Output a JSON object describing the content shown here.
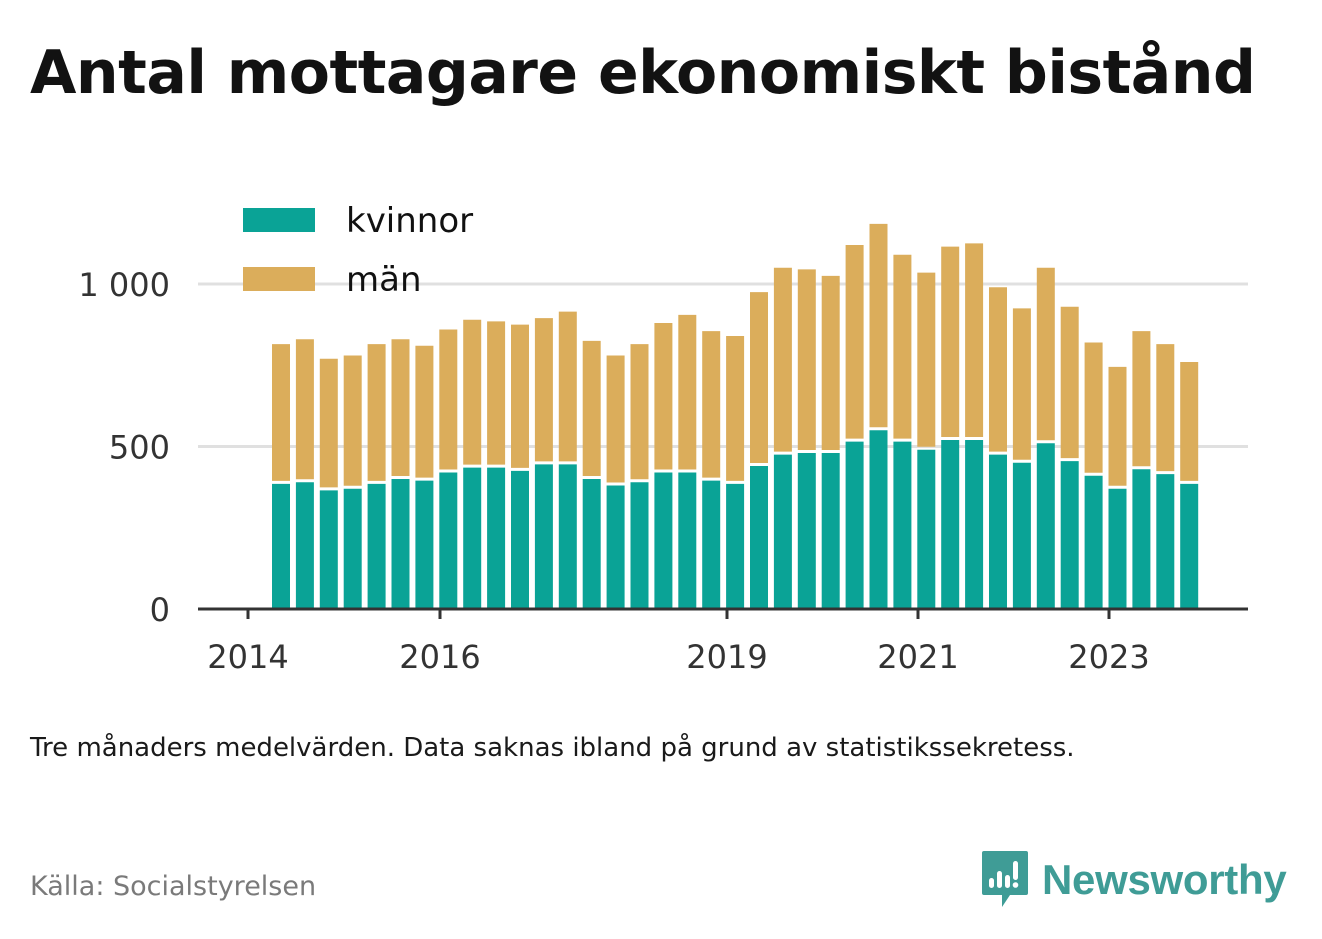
{
  "title": "Antal mottagare ekonomiskt bistånd",
  "note": "Tre månaders medelvärden. Data saknas ibland på grund av statistikssekretess.",
  "source": "Källa: Socialstyrelsen",
  "brand": {
    "name": "Newsworthy",
    "icon": "newsworthy-logo-icon",
    "color": "#3f9c96"
  },
  "colors": {
    "kvinnor": "#0aa396",
    "man": "#dbad5b",
    "grid": "#e0e0e0",
    "axis": "#333333"
  },
  "chart_data": {
    "type": "bar",
    "stacked": true,
    "legend_position": "top-left",
    "grid": true,
    "ylim": [
      0,
      1250
    ],
    "yticks": [
      0,
      500,
      1000
    ],
    "ytick_labels": [
      "0",
      "500",
      "1 000"
    ],
    "xtick_labels": [
      "2014",
      "2016",
      "2019",
      "2021",
      "2023"
    ],
    "xtick_positions": [
      0,
      8,
      20,
      28,
      36
    ],
    "categories": [
      "2014 Q3",
      "2014 Q4",
      "2015 Q1",
      "2015 Q2",
      "2015 Q3",
      "2015 Q4",
      "2016 Q1",
      "2016 Q2",
      "2016 Q3",
      "2016 Q4",
      "2017 Q1",
      "2017 Q2",
      "2017 Q3",
      "2017 Q4",
      "2018 Q1",
      "2018 Q2",
      "2018 Q3",
      "2018 Q4",
      "2019 Q1",
      "2019 Q2",
      "2019 Q3",
      "2019 Q4",
      "2020 Q1",
      "2020 Q2",
      "2020 Q3",
      "2020 Q4",
      "2021 Q1",
      "2021 Q2",
      "2021 Q3",
      "2021 Q4",
      "2022 Q1",
      "2022 Q2",
      "2022 Q3",
      "2022 Q4",
      "2023 Q1",
      "2023 Q2",
      "2023 Q3",
      "2023 Q4",
      "2024 Q1"
    ],
    "series": [
      {
        "name": "kvinnor",
        "values": [
          385,
          390,
          365,
          370,
          385,
          400,
          395,
          420,
          435,
          435,
          425,
          445,
          445,
          400,
          380,
          390,
          420,
          420,
          395,
          385,
          440,
          475,
          480,
          480,
          515,
          550,
          515,
          490,
          520,
          520,
          475,
          450,
          510,
          455,
          410,
          370,
          430,
          415,
          385
        ]
      },
      {
        "name": "män",
        "values": [
          430,
          440,
          405,
          410,
          430,
          430,
          415,
          440,
          455,
          450,
          450,
          450,
          470,
          425,
          400,
          425,
          460,
          485,
          460,
          455,
          535,
          575,
          565,
          545,
          605,
          635,
          575,
          545,
          595,
          605,
          515,
          475,
          540,
          475,
          410,
          375,
          425,
          400,
          375
        ]
      }
    ]
  }
}
